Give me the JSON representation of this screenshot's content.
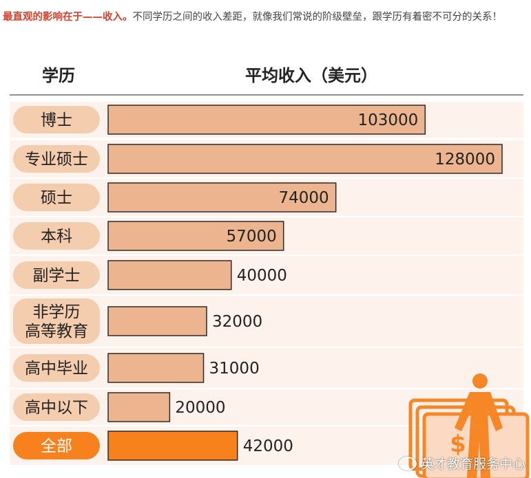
{
  "intro": {
    "lead": "最直观的影响在于——收入。",
    "text": "不同学历之间的收入差距，就像我们常说的阶级壁垒，跟学历有着密不可分的关系！"
  },
  "colors": {
    "bar": "#ecb590",
    "bar_total": "#f7811c",
    "pill": "#f4cdae",
    "pill_total": "#f7811c",
    "row_bg": "#fdf2ec",
    "lead_text": "#d6402c"
  },
  "watermark": {
    "text": "英才教育服务中心"
  },
  "chart_data": {
    "type": "bar",
    "orientation": "horizontal",
    "header_category": "学历",
    "header_value": "平均收入（美元）",
    "categories": [
      "博士",
      "专业硕士",
      "硕士",
      "本科",
      "副学士",
      "非学历高等教育",
      "高中毕业",
      "高中以下",
      "全部"
    ],
    "category_lines": [
      [
        "博士"
      ],
      [
        "专业硕士"
      ],
      [
        "硕士"
      ],
      [
        "本科"
      ],
      [
        "副学士"
      ],
      [
        "非学历",
        "高等教育"
      ],
      [
        "高中毕业"
      ],
      [
        "高中以下"
      ],
      [
        "全部"
      ]
    ],
    "values": [
      103000,
      128000,
      74000,
      57000,
      40000,
      32000,
      31000,
      20000,
      42000
    ],
    "value_labels": [
      "103000",
      "128000",
      "74000",
      "57000",
      "40000",
      "32000",
      "31000",
      "20000",
      "42000"
    ],
    "xlim": [
      0,
      128000
    ],
    "highlight": "全部",
    "grid": false
  }
}
